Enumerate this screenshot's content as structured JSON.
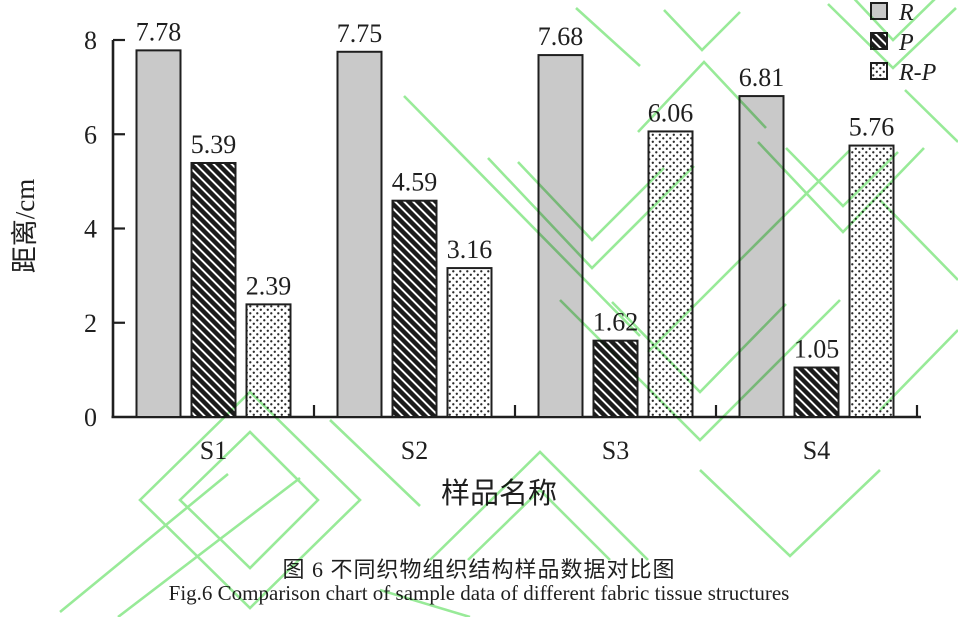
{
  "figure": {
    "caption_zh": "图 6 不同织物组织结构样品数据对比图",
    "caption_en": "Fig.6 Comparison chart of sample data of different fabric tissue structures"
  },
  "colors": {
    "background": "#ffffff",
    "axis_ink": "#1f1f1f",
    "bar_fill_gray": "#c9c9c9",
    "pattern_ink": "#1c1c1c",
    "watermark_green": "#87e787"
  },
  "chart_data": {
    "type": "bar",
    "title": "",
    "xlabel": "样品名称",
    "ylabel": "距离/cm",
    "categories": [
      "S1",
      "S2",
      "S3",
      "S4"
    ],
    "series": [
      {
        "name": "R",
        "pattern": "solid-gray",
        "values": [
          7.78,
          7.75,
          7.68,
          6.81
        ]
      },
      {
        "name": "P",
        "pattern": "diagonal-hatch",
        "values": [
          5.39,
          4.59,
          1.62,
          1.05
        ]
      },
      {
        "name": "R-P",
        "pattern": "dots",
        "values": [
          2.39,
          3.16,
          6.06,
          5.76
        ]
      }
    ],
    "ylim": [
      0,
      8
    ],
    "yticks": [
      0,
      2,
      4,
      6,
      8
    ],
    "grid": false,
    "legend_position": "top-right",
    "value_labels": true,
    "value_label_format": "0.00"
  }
}
